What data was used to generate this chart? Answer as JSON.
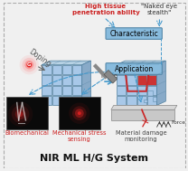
{
  "title": "NIR ML H/G System",
  "title_fontsize": 8,
  "bg_color": "#f0f0f0",
  "text_high_tissue": "High tissue\npenetration ability",
  "text_naked_eye": "\"Naked eye\nstealth\"",
  "text_characteristic": "Characteristic",
  "text_application": "Application",
  "text_doping": "Doping",
  "text_force": "Force",
  "text_biomech": "Biomechanical",
  "text_mech_stress": "Mechanical stress\nsensing",
  "text_material": "Material damage\nmonitoring",
  "cube_color": "#a8c8e8",
  "cube_color_top": "#c8dff0",
  "cube_color_right": "#88aac8",
  "cube_edge_color": "#5080a0",
  "red_color": "#cc2222",
  "arrow_color": "#4499cc",
  "label_box_color": "#88bbdd"
}
